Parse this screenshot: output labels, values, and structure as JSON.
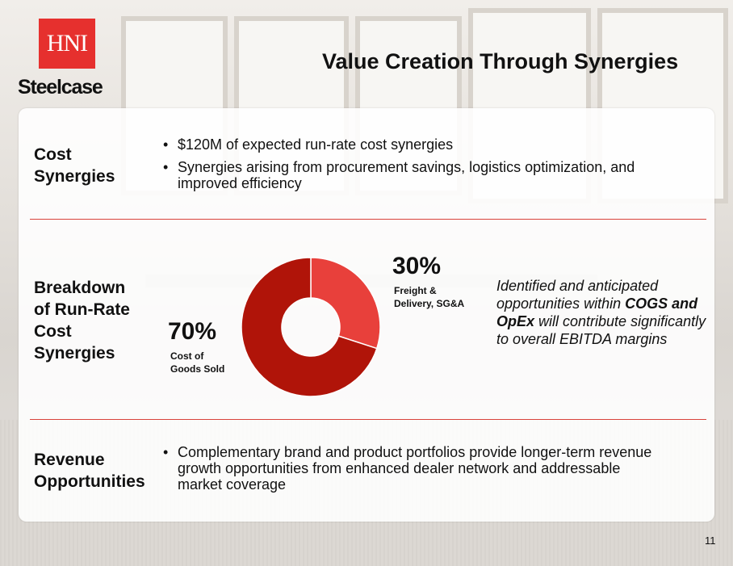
{
  "header": {
    "logo_hni": "HNI",
    "logo_steelcase": "Steelcase",
    "title": "Value Creation Through Synergies"
  },
  "sections": {
    "cost": {
      "label_line1": "Cost",
      "label_line2": "Synergies",
      "bullets": [
        "$120M of expected run-rate cost synergies",
        "Synergies arising from procurement savings, logistics optimization, and improved efficiency"
      ]
    },
    "breakdown": {
      "label_line1": "Breakdown",
      "label_line2": "of Run-Rate",
      "label_line3": "Cost",
      "label_line4": "Synergies",
      "note_part1": "Identified and anticipated opportunities within ",
      "note_bold1": "COGS",
      "note_part2": " ",
      "note_bold2": "and OpEx",
      "note_part3": " will contribute significantly to overall EBITDA margins"
    },
    "revenue": {
      "label_line1": "Revenue",
      "label_line2": "Opportunities",
      "bullets": [
        "Complementary brand and product portfolios provide longer-term revenue growth opportunities from enhanced dealer network and addressable market coverage"
      ]
    }
  },
  "chart_data": {
    "type": "pie",
    "title": "Breakdown of Run-Rate Cost Synergies",
    "categories": [
      "Freight & Delivery, SG&A",
      "Cost of Goods Sold"
    ],
    "values": [
      30,
      70
    ],
    "value_labels": [
      "30%",
      "70%"
    ],
    "label_line1": [
      "Freight &",
      "Cost of"
    ],
    "label_line2": [
      "Delivery, SG&A",
      "Goods Sold"
    ],
    "colors": [
      "#e8403b",
      "#b01409"
    ],
    "donut": true
  },
  "footer": {
    "page_number": "11"
  }
}
